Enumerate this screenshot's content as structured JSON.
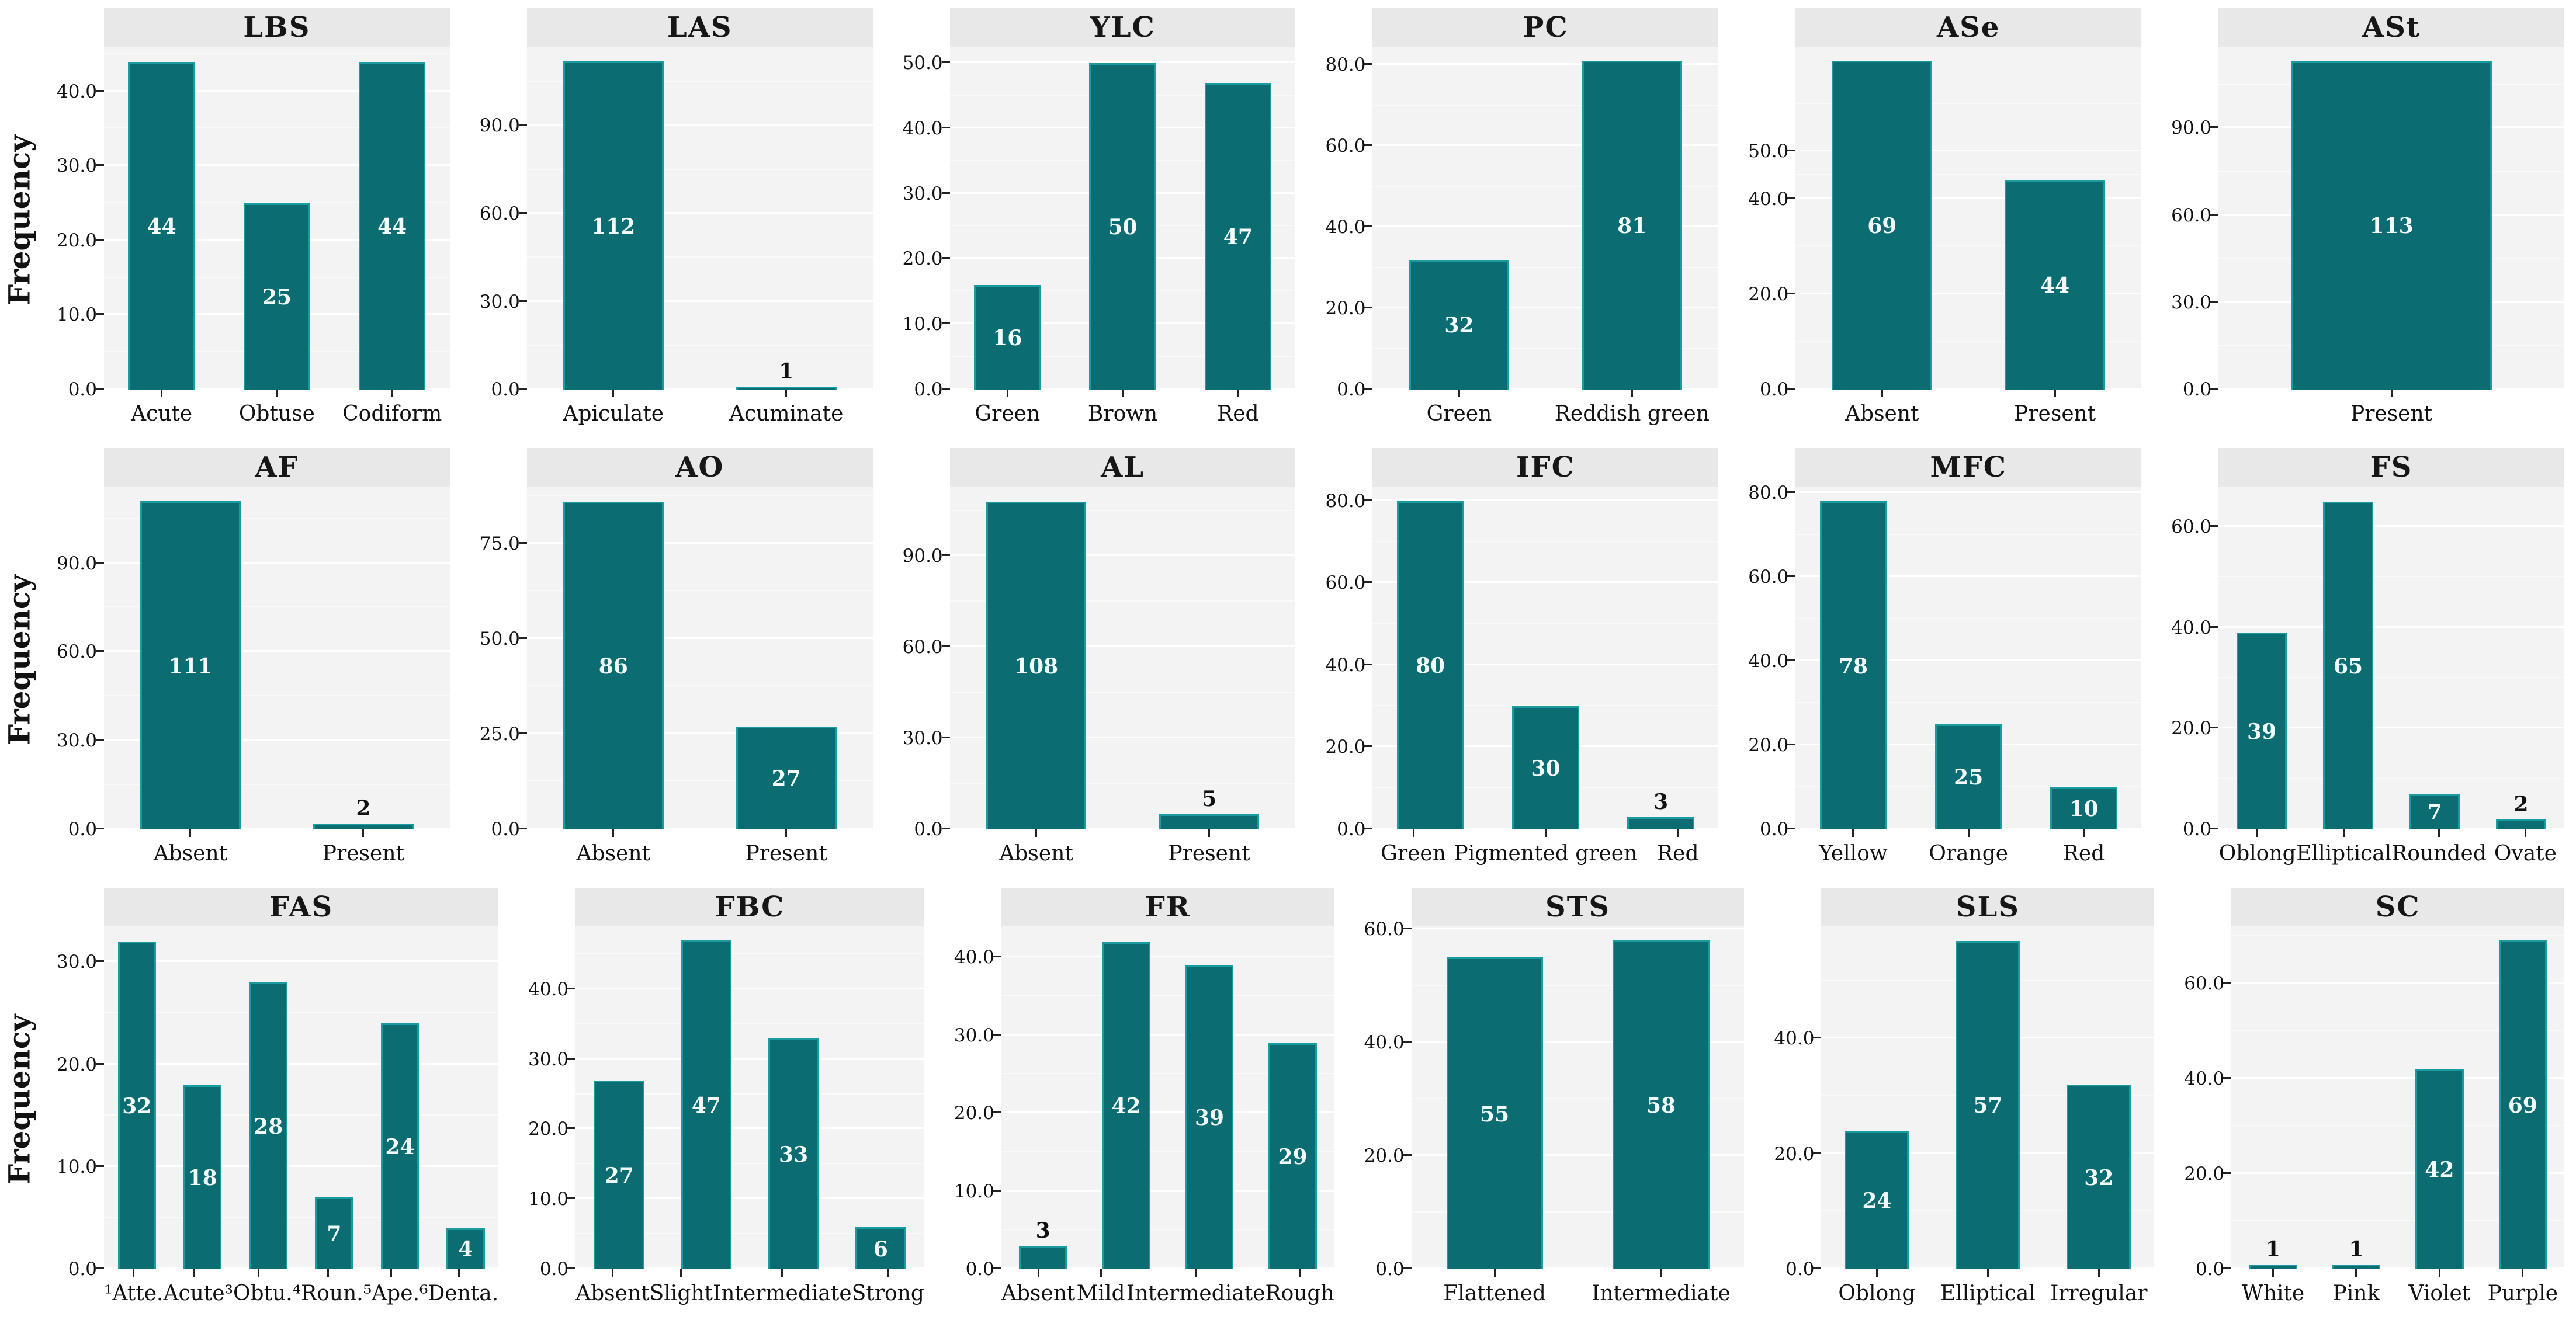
{
  "ylabel": "Frequency",
  "colors": {
    "bar_fill": "#0b6c71",
    "bar_border": "#1b9ba0",
    "panel_bg": "#f3f3f3",
    "strip_bg": "#e8e8e8",
    "grid_major": "#ffffff",
    "value_label_inside": "#f2fafa",
    "value_label_above": "#111111",
    "text": "#111111"
  },
  "chart_data": [
    {
      "type": "bar",
      "title": "LBS",
      "categories": [
        "Acute",
        "Obtuse",
        "Codiform"
      ],
      "values": [
        44,
        25,
        44
      ],
      "label_pos": [
        "inside",
        "inside",
        "inside"
      ],
      "yticks": [
        "0.0",
        "10.0",
        "20.0",
        "30.0",
        "40.0"
      ],
      "ylim": [
        0,
        46
      ],
      "ylabel": "Frequency"
    },
    {
      "type": "bar",
      "title": "LAS",
      "categories": [
        "Apiculate",
        "Acuminate"
      ],
      "values": [
        112,
        1
      ],
      "label_pos": [
        "inside",
        "above"
      ],
      "yticks": [
        "0.0",
        "30.0",
        "60.0",
        "90.0"
      ],
      "ylim": [
        0,
        117
      ],
      "ylabel": "Frequency"
    },
    {
      "type": "bar",
      "title": "YLC",
      "categories": [
        "Green",
        "Brown",
        "Red"
      ],
      "values": [
        16,
        50,
        47
      ],
      "label_pos": [
        "inside",
        "inside",
        "inside"
      ],
      "yticks": [
        "0.0",
        "10.0",
        "20.0",
        "30.0",
        "40.0",
        "50.0"
      ],
      "ylim": [
        0,
        52.5
      ],
      "ylabel": "Frequency"
    },
    {
      "type": "bar",
      "title": "PC",
      "categories": [
        "Green",
        "Reddish green"
      ],
      "values": [
        32,
        81
      ],
      "label_pos": [
        "inside",
        "inside"
      ],
      "yticks": [
        "0.0",
        "20.0",
        "40.0",
        "60.0",
        "80.0"
      ],
      "ylim": [
        0,
        84.5
      ],
      "ylabel": "Frequency"
    },
    {
      "type": "bar",
      "title": "ASe",
      "categories": [
        "Absent",
        "Present"
      ],
      "values": [
        69,
        44
      ],
      "label_pos": [
        "inside",
        "inside"
      ],
      "yticks": [
        "0.0",
        "20.0",
        "40.0",
        "50.0"
      ],
      "ylim": [
        0,
        72
      ],
      "ylabel": "Frequency"
    },
    {
      "type": "bar",
      "title": "ASt",
      "categories": [
        "Present"
      ],
      "values": [
        113
      ],
      "label_pos": [
        "inside"
      ],
      "yticks": [
        "0.0",
        "30.0",
        "60.0",
        "90.0"
      ],
      "ylim": [
        0,
        118
      ],
      "ylabel": "Frequency"
    },
    {
      "type": "bar",
      "title": "AF",
      "categories": [
        "Absent",
        "Present"
      ],
      "values": [
        111,
        2
      ],
      "label_pos": [
        "inside",
        "above"
      ],
      "yticks": [
        "0.0",
        "30.0",
        "60.0",
        "90.0"
      ],
      "ylim": [
        0,
        116
      ],
      "ylabel": "Frequency"
    },
    {
      "type": "bar",
      "title": "AO",
      "categories": [
        "Absent",
        "Present"
      ],
      "values": [
        86,
        27
      ],
      "label_pos": [
        "inside",
        "inside"
      ],
      "yticks": [
        "0.0",
        "25.0",
        "50.0",
        "75.0"
      ],
      "ylim": [
        0,
        90
      ],
      "ylabel": "Frequency"
    },
    {
      "type": "bar",
      "title": "AL",
      "categories": [
        "Absent",
        "Present"
      ],
      "values": [
        108,
        5
      ],
      "label_pos": [
        "inside",
        "above"
      ],
      "yticks": [
        "0.0",
        "30.0",
        "60.0",
        "90.0"
      ],
      "ylim": [
        0,
        113
      ],
      "ylabel": "Frequency"
    },
    {
      "type": "bar",
      "title": "IFC",
      "categories": [
        "Green",
        "Pigmented green",
        "Red"
      ],
      "values": [
        80,
        30,
        3
      ],
      "label_pos": [
        "inside",
        "inside",
        "above"
      ],
      "yticks": [
        "0.0",
        "20.0",
        "40.0",
        "60.0",
        "80.0"
      ],
      "ylim": [
        0,
        83.5
      ],
      "ylabel": "Frequency"
    },
    {
      "type": "bar",
      "title": "MFC",
      "categories": [
        "Yellow",
        "Orange",
        "Red"
      ],
      "values": [
        78,
        25,
        10
      ],
      "label_pos": [
        "inside",
        "inside",
        "inside"
      ],
      "yticks": [
        "0.0",
        "20.0",
        "40.0",
        "60.0",
        "80.0"
      ],
      "ylim": [
        0,
        81.5
      ],
      "ylabel": "Frequency"
    },
    {
      "type": "bar",
      "title": "FS",
      "categories": [
        "Oblong",
        "Elliptical",
        "Rounded",
        "Ovate"
      ],
      "values": [
        39,
        65,
        7,
        2
      ],
      "label_pos": [
        "inside",
        "inside",
        "inside",
        "above"
      ],
      "yticks": [
        "0.0",
        "20.0",
        "40.0",
        "60.0"
      ],
      "ylim": [
        0,
        68
      ],
      "ylabel": "Frequency"
    },
    {
      "type": "bar",
      "title": "FAS",
      "categories": [
        "¹Atte.",
        "Acute",
        "³Obtu.",
        "⁴Roun.",
        "⁵Ape.",
        "⁶Denta."
      ],
      "values": [
        32,
        18,
        28,
        7,
        24,
        4
      ],
      "label_pos": [
        "inside",
        "inside",
        "inside",
        "inside",
        "inside",
        "inside"
      ],
      "yticks": [
        "0.0",
        "10.0",
        "20.0",
        "30.0"
      ],
      "ylim": [
        0,
        33.5
      ],
      "ylabel": "Frequency"
    },
    {
      "type": "bar",
      "title": "FBC",
      "categories": [
        "Absent",
        "Slight",
        "Intermediate",
        "Strong"
      ],
      "values": [
        27,
        47,
        33,
        6
      ],
      "label_pos": [
        "inside",
        "inside",
        "inside",
        "inside"
      ],
      "yticks": [
        "0.0",
        "10.0",
        "20.0",
        "30.0",
        "40.0"
      ],
      "ylim": [
        0,
        49
      ],
      "ylabel": "Frequency"
    },
    {
      "type": "bar",
      "title": "FR",
      "categories": [
        "Absent",
        "Mild",
        "Intermediate",
        "Rough"
      ],
      "values": [
        3,
        42,
        39,
        29
      ],
      "label_pos": [
        "above",
        "inside",
        "inside",
        "inside"
      ],
      "yticks": [
        "0.0",
        "10.0",
        "20.0",
        "30.0",
        "40.0"
      ],
      "ylim": [
        0,
        44
      ],
      "ylabel": "Frequency"
    },
    {
      "type": "bar",
      "title": "STS",
      "categories": [
        "Flattened",
        "Intermediate"
      ],
      "values": [
        55,
        58
      ],
      "label_pos": [
        "inside",
        "inside"
      ],
      "yticks": [
        "0.0",
        "20.0",
        "40.0",
        "60.0"
      ],
      "ylim": [
        0,
        60.5
      ],
      "ylabel": "Frequency"
    },
    {
      "type": "bar",
      "title": "SLS",
      "categories": [
        "Oblong",
        "Elliptical",
        "Irregular"
      ],
      "values": [
        24,
        57,
        32
      ],
      "label_pos": [
        "inside",
        "inside",
        "inside"
      ],
      "yticks": [
        "0.0",
        "20.0",
        "40.0"
      ],
      "ylim": [
        0,
        59.5
      ],
      "ylabel": "Frequency"
    },
    {
      "type": "bar",
      "title": "SC",
      "categories": [
        "White",
        "Pink",
        "Violet",
        "Purple"
      ],
      "values": [
        1,
        1,
        42,
        69
      ],
      "label_pos": [
        "above",
        "above",
        "inside",
        "inside"
      ],
      "yticks": [
        "0.0",
        "20.0",
        "40.0",
        "60.0"
      ],
      "ylim": [
        0,
        72
      ],
      "ylabel": "Frequency"
    }
  ]
}
